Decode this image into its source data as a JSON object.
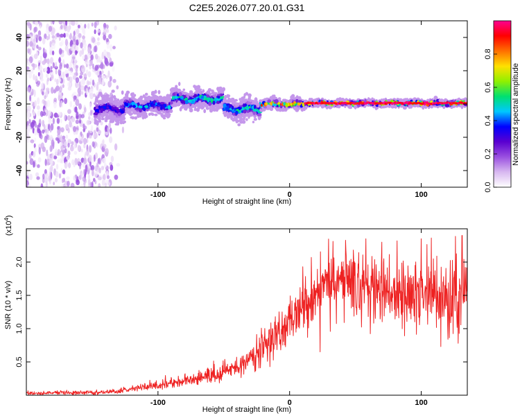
{
  "title": "C2E5.2026.077.20.01.G31",
  "chart_data": [
    {
      "type": "heatmap",
      "title": "C2E5.2026.077.20.01.G31",
      "xlabel": "Height of straight line (km)",
      "ylabel": "Frequency (Hz)",
      "xlim": [
        -200,
        135
      ],
      "ylim": [
        -50,
        50
      ],
      "xticks": [
        -100,
        0,
        100
      ],
      "xtick_labels": [
        "-100",
        "0",
        "100"
      ],
      "yticks": [
        -40,
        -20,
        0,
        20,
        40
      ],
      "ytick_labels": [
        "-40",
        "-20",
        "0",
        "20",
        "40"
      ],
      "signal_segments": [
        {
          "x_start": -148,
          "x_end": -125,
          "freq_center": -3,
          "spread": 4,
          "peak_amplitude": 0.35
        },
        {
          "x_start": -125,
          "x_end": -90,
          "freq_center": -1,
          "spread": 3,
          "peak_amplitude": 0.45
        },
        {
          "x_start": -90,
          "x_end": -50,
          "freq_center": 3,
          "spread": 3,
          "peak_amplitude": 0.55
        },
        {
          "x_start": -50,
          "x_end": -22,
          "freq_center": -3,
          "spread": 3,
          "peak_amplitude": 0.55
        },
        {
          "x_start": -22,
          "x_end": 12,
          "freq_center": 0,
          "spread": 1.5,
          "peak_amplitude": 0.9
        },
        {
          "x_start": 12,
          "x_end": 135,
          "freq_center": 0.5,
          "spread": 1,
          "peak_amplitude": 1.0
        }
      ],
      "noise_region": {
        "x_start": -200,
        "x_end": -135,
        "amplitude_range": [
          0.02,
          0.2
        ]
      },
      "colorbar": {
        "label": "Normalized spectral amplitude",
        "range": [
          0,
          1
        ],
        "ticks": [
          0.0,
          0.2,
          0.4,
          0.6,
          0.8
        ],
        "tick_labels": [
          "0.0",
          "0.2",
          "0.4",
          "0.6",
          "0.8"
        ],
        "colors": [
          "#ffffff",
          "#d8b8f0",
          "#9a50e0",
          "#5a00d0",
          "#0000ff",
          "#00c8ff",
          "#00e070",
          "#90f000",
          "#ffe000",
          "#ff7000",
          "#ff0000",
          "#ff0090"
        ]
      }
    },
    {
      "type": "line",
      "xlabel": "Height of straight line (km)",
      "ylabel": "SNR (10 * v/v)",
      "y_multiplier_label": "(x10",
      "y_multiplier_exponent": "4",
      "y_multiplier_close": ")",
      "xlim": [
        -200,
        135
      ],
      "ylim": [
        0,
        2.5
      ],
      "xticks": [
        -100,
        0,
        100
      ],
      "xtick_labels": [
        "-100",
        "0",
        "100"
      ],
      "yticks": [
        0.5,
        1.0,
        1.5,
        2.0
      ],
      "ytick_labels": [
        "0.5",
        "1.0",
        "1.5",
        "2.0"
      ],
      "color": "#ee2222",
      "trend": {
        "x": [
          -200,
          -150,
          -130,
          -110,
          -90,
          -70,
          -50,
          -40,
          -30,
          -20,
          -10,
          0,
          10,
          20,
          30,
          40,
          50,
          60,
          70,
          80,
          90,
          100,
          110,
          120,
          130,
          135
        ],
        "y": [
          0.03,
          0.04,
          0.06,
          0.12,
          0.18,
          0.25,
          0.35,
          0.42,
          0.55,
          0.7,
          0.9,
          1.05,
          1.35,
          1.55,
          1.6,
          1.65,
          1.65,
          1.6,
          1.6,
          1.55,
          1.55,
          1.5,
          1.5,
          1.45,
          1.45,
          1.5
        ]
      },
      "peaks": [
        {
          "x": 10,
          "y": 1.93
        },
        {
          "x": 58,
          "y": 2.35
        },
        {
          "x": 70,
          "y": 2.3
        },
        {
          "x": 100,
          "y": 2.35
        },
        {
          "x": 131,
          "y": 2.4
        }
      ],
      "troughs": [
        {
          "x": 115,
          "y": 0.73
        },
        {
          "x": 128,
          "y": 0.78
        }
      ]
    }
  ]
}
